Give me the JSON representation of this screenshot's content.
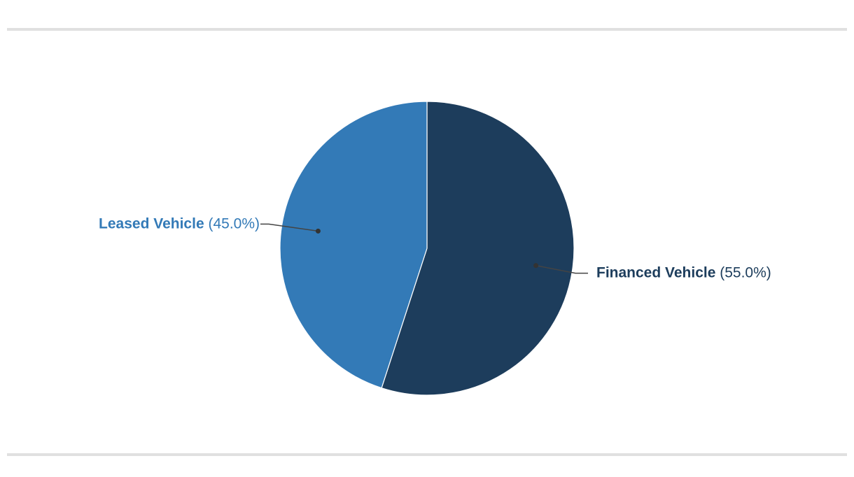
{
  "chart_data": {
    "type": "pie",
    "categories": [
      "Financed Vehicle",
      "Leased Vehicle"
    ],
    "values": [
      55,
      45
    ],
    "value_labels": [
      "(55.0%)",
      "(45.0%)"
    ],
    "colors": [
      "#1d3d5c",
      "#337ab7"
    ]
  }
}
